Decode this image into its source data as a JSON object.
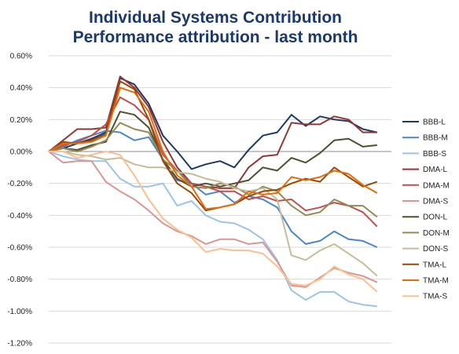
{
  "chart_data": {
    "type": "line",
    "title": "Individual Systems Contribution",
    "subtitle": "Performance attribution - last month",
    "xlabel": "",
    "ylabel": "",
    "ylim": [
      -1.2,
      0.6
    ],
    "y_tick_labels": [
      "0.60%",
      "0.40%",
      "0.20%",
      "0.00%",
      "-0.20%",
      "-0.40%",
      "-0.60%",
      "-0.80%",
      "-1.00%",
      "-1.20%"
    ],
    "y_tick_values": [
      0.6,
      0.4,
      0.2,
      0.0,
      -0.2,
      -0.4,
      -0.6,
      -0.8,
      -1.0,
      -1.2
    ],
    "x": [
      1,
      2,
      3,
      4,
      5,
      6,
      7,
      8,
      9,
      10,
      11,
      12,
      13,
      14,
      15,
      16,
      17,
      18,
      19,
      20,
      21,
      22,
      23,
      24,
      25
    ],
    "grid": "horizontal",
    "legend_position": "right",
    "series": [
      {
        "name": "BBB-L",
        "color": "#1f3864",
        "values": [
          0,
          0.02,
          0.05,
          0.08,
          0.12,
          0.46,
          0.42,
          0.3,
          0.1,
          0.0,
          -0.11,
          -0.08,
          -0.06,
          -0.1,
          0.01,
          0.1,
          0.12,
          0.23,
          0.16,
          0.22,
          0.2,
          0.19,
          0.14,
          0.12,
          null
        ]
      },
      {
        "name": "BBB-M",
        "color": "#4a86c8",
        "values": [
          0,
          0.03,
          0.07,
          0.1,
          0.13,
          0.12,
          0.07,
          0.09,
          -0.05,
          -0.18,
          -0.2,
          -0.27,
          -0.25,
          -0.32,
          -0.28,
          -0.3,
          -0.35,
          -0.5,
          -0.58,
          -0.56,
          -0.5,
          -0.55,
          -0.56,
          -0.6,
          null
        ]
      },
      {
        "name": "BBB-S",
        "color": "#9dc3e6",
        "values": [
          0,
          -0.03,
          -0.05,
          -0.06,
          -0.06,
          -0.17,
          -0.22,
          -0.22,
          -0.2,
          -0.34,
          -0.31,
          -0.4,
          -0.44,
          -0.45,
          -0.49,
          -0.55,
          -0.68,
          -0.87,
          -0.93,
          -0.88,
          -0.88,
          -0.94,
          -0.96,
          -0.97,
          null
        ]
      },
      {
        "name": "DMA-L",
        "color": "#943634",
        "values": [
          0,
          0.07,
          0.14,
          0.14,
          0.15,
          0.47,
          0.4,
          0.28,
          0.06,
          -0.1,
          -0.2,
          -0.22,
          -0.23,
          -0.23,
          -0.1,
          -0.03,
          -0.02,
          0.18,
          0.17,
          0.17,
          0.22,
          0.2,
          0.12,
          0.12,
          null
        ]
      },
      {
        "name": "DMA-M",
        "color": "#c0504d",
        "values": [
          0,
          0.04,
          0.06,
          0.1,
          0.17,
          0.34,
          0.29,
          0.2,
          -0.02,
          -0.12,
          -0.2,
          -0.22,
          -0.25,
          -0.25,
          -0.3,
          -0.28,
          -0.31,
          -0.3,
          -0.37,
          -0.35,
          -0.32,
          -0.34,
          -0.38,
          -0.47,
          null
        ]
      },
      {
        "name": "DMA-S",
        "color": "#da9694",
        "values": [
          0,
          -0.07,
          -0.06,
          -0.06,
          -0.19,
          -0.25,
          -0.3,
          -0.37,
          -0.45,
          -0.5,
          -0.53,
          -0.58,
          -0.55,
          -0.55,
          -0.58,
          -0.57,
          -0.69,
          -0.84,
          -0.85,
          -0.79,
          -0.73,
          -0.76,
          -0.78,
          -0.82,
          null
        ]
      },
      {
        "name": "DON-L",
        "color": "#4f4f2f",
        "values": [
          0,
          0.02,
          0.01,
          0.04,
          0.06,
          0.25,
          0.23,
          0.15,
          -0.05,
          -0.17,
          -0.22,
          -0.2,
          -0.22,
          -0.2,
          -0.18,
          -0.1,
          -0.12,
          -0.04,
          -0.07,
          -0.01,
          0.07,
          0.08,
          0.03,
          0.04,
          null
        ]
      },
      {
        "name": "DON-M",
        "color": "#948a54",
        "values": [
          0,
          0.02,
          0.0,
          0.03,
          0.07,
          0.18,
          0.14,
          0.12,
          -0.05,
          -0.12,
          -0.22,
          -0.23,
          -0.2,
          -0.22,
          -0.27,
          -0.22,
          -0.25,
          -0.34,
          -0.4,
          -0.38,
          -0.3,
          -0.34,
          -0.34,
          -0.41,
          null
        ]
      },
      {
        "name": "DON-S",
        "color": "#c4bd97",
        "values": [
          0,
          0.0,
          -0.02,
          -0.03,
          -0.05,
          -0.04,
          -0.08,
          -0.1,
          -0.1,
          -0.13,
          -0.14,
          -0.17,
          -0.19,
          -0.23,
          -0.25,
          -0.23,
          -0.3,
          -0.65,
          -0.68,
          -0.62,
          -0.58,
          -0.64,
          -0.7,
          -0.78,
          null
        ]
      },
      {
        "name": "TMA-L",
        "color": "#984807",
        "values": [
          0,
          0.06,
          0.05,
          0.07,
          0.11,
          0.44,
          0.39,
          0.2,
          -0.06,
          -0.2,
          -0.26,
          -0.37,
          -0.35,
          -0.33,
          -0.28,
          -0.25,
          -0.24,
          -0.2,
          -0.17,
          -0.19,
          -0.1,
          -0.16,
          -0.22,
          -0.19,
          null
        ]
      },
      {
        "name": "TMA-M",
        "color": "#e46c0a",
        "values": [
          0,
          0.05,
          0.05,
          0.06,
          0.1,
          0.4,
          0.37,
          0.25,
          0.0,
          -0.15,
          -0.22,
          -0.36,
          -0.35,
          -0.33,
          -0.25,
          -0.27,
          -0.26,
          -0.16,
          -0.18,
          -0.16,
          -0.12,
          -0.14,
          -0.21,
          -0.26,
          null
        ]
      },
      {
        "name": "TMA-S",
        "color": "#fac090",
        "values": [
          0,
          0.0,
          -0.04,
          -0.02,
          0.0,
          -0.02,
          -0.15,
          -0.3,
          -0.42,
          -0.49,
          -0.54,
          -0.63,
          -0.61,
          -0.62,
          -0.62,
          -0.64,
          -0.72,
          -0.83,
          -0.84,
          -0.8,
          -0.72,
          -0.77,
          -0.8,
          -0.88,
          null
        ]
      }
    ]
  }
}
